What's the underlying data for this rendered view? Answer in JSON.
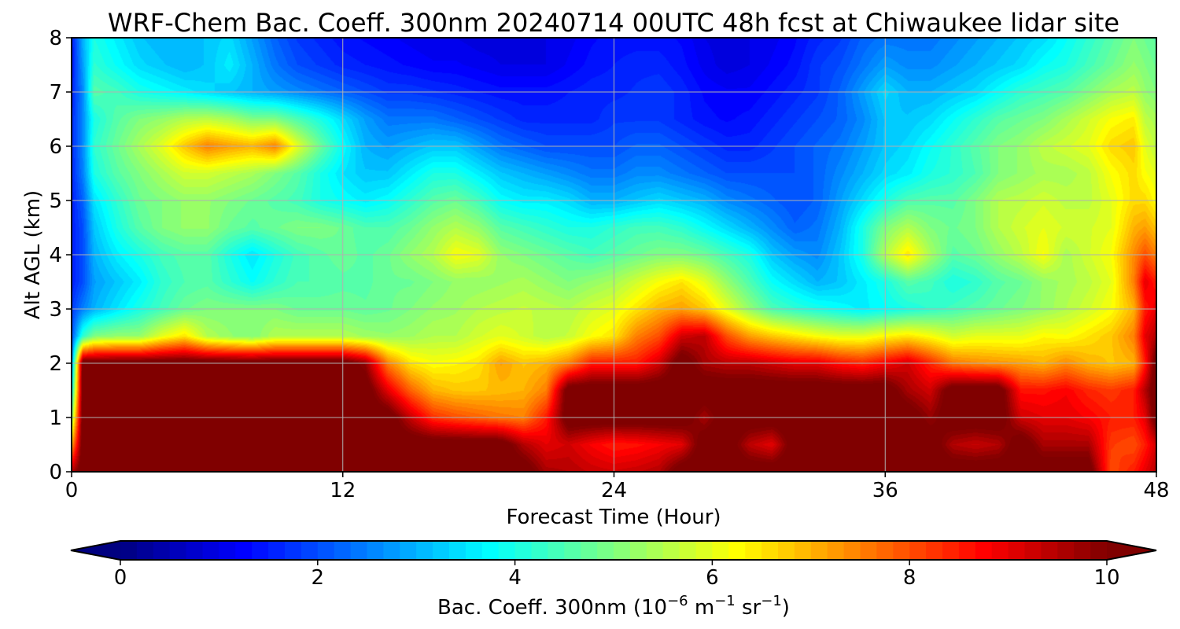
{
  "chart_data": {
    "type": "heatmap",
    "title": "WRF-Chem Bac. Coeff. 300nm  20240714 00UTC 48h fcst at Chiwaukee lidar site",
    "xlabel": "Forecast Time (Hour)",
    "ylabel": "Alt AGL (km)",
    "xlim": [
      0,
      48
    ],
    "ylim": [
      0,
      8
    ],
    "x_ticks": [
      0,
      12,
      24,
      36,
      48
    ],
    "y_ticks": [
      0,
      1,
      2,
      3,
      4,
      5,
      6,
      7,
      8
    ],
    "grid": true,
    "colormap": "jet",
    "colorbar": {
      "label_prefix": "Bac. Coeff. 300nm  (10",
      "label_exp1": "−6",
      "label_mid": " m",
      "label_exp2": "−1",
      "label_mid2": " sr",
      "label_exp3": "−1",
      "label_suffix": ")",
      "range": [
        0,
        10
      ],
      "ticks": [
        0,
        2,
        4,
        6,
        8,
        10
      ],
      "extend": "both",
      "under_color": "#000080",
      "over_color": "#800000"
    },
    "x_hours": [
      0,
      0.5,
      1,
      2,
      3,
      4,
      5,
      6,
      7,
      8,
      9,
      10,
      11,
      12,
      13,
      14,
      15,
      16,
      17,
      18,
      19,
      20,
      21,
      22,
      23,
      24,
      25,
      26,
      27,
      28,
      29,
      30,
      31,
      32,
      33,
      34,
      35,
      36,
      37,
      38,
      39,
      40,
      41,
      42,
      43,
      44,
      45,
      46,
      47,
      47.5,
      48
    ],
    "y_km": [
      0,
      0.5,
      1,
      1.5,
      2,
      2.5,
      3,
      3.5,
      4,
      4.5,
      5,
      5.5,
      6,
      6.5,
      7,
      7.5,
      8
    ],
    "values": [
      [
        9.5,
        10.5,
        10.5,
        10.5,
        10.5,
        10.5,
        10.5,
        10.5,
        10.5,
        10.5,
        10.5,
        10.5,
        10.5,
        10.5,
        10.5,
        10.5,
        10.5,
        10.5,
        10.5,
        10.5,
        10.5,
        10.5,
        9.6,
        9.5,
        9.3,
        9.2,
        9.3,
        9.5,
        10.5,
        10.5,
        10.5,
        10.5,
        10.5,
        10.5,
        10.5,
        10.5,
        10.5,
        10.5,
        10.5,
        10.5,
        10.5,
        10.5,
        10.5,
        10.5,
        10.5,
        10.5,
        10.5,
        8.0,
        8.5,
        9.0,
        9.5
      ],
      [
        7.0,
        10.5,
        10.5,
        10.5,
        10.5,
        10.5,
        10.5,
        10.5,
        10.5,
        10.5,
        10.5,
        10.5,
        10.5,
        10.5,
        10.5,
        10.5,
        10.5,
        10.5,
        10.5,
        10.5,
        10.5,
        9.5,
        9.0,
        9.2,
        8.8,
        8.5,
        8.6,
        8.8,
        9.0,
        10.5,
        10.5,
        9.4,
        9.0,
        10.5,
        10.5,
        10.5,
        10.5,
        10.5,
        10.5,
        10.5,
        9.5,
        9.3,
        9.5,
        10.5,
        9.6,
        9.6,
        9.6,
        8.2,
        8.0,
        8.5,
        9.2
      ],
      [
        5.0,
        10.5,
        10.5,
        10.5,
        10.5,
        10.5,
        10.5,
        10.5,
        10.5,
        10.5,
        10.5,
        10.5,
        10.5,
        10.5,
        10.5,
        10.5,
        9.3,
        8.3,
        8.0,
        7.8,
        7.6,
        7.5,
        8.5,
        10.5,
        10.5,
        10.5,
        10.5,
        10.5,
        10.5,
        9.6,
        10.5,
        10.5,
        10.5,
        10.5,
        10.5,
        10.5,
        10.5,
        10.5,
        10.5,
        9.8,
        10.5,
        10.5,
        10.5,
        9.2,
        9.0,
        9.0,
        8.8,
        8.5,
        8.5,
        9.0,
        10.5
      ],
      [
        3.5,
        10.5,
        10.5,
        10.5,
        10.5,
        10.5,
        10.5,
        10.5,
        10.5,
        10.5,
        10.5,
        10.5,
        10.5,
        10.5,
        10.5,
        9.0,
        7.8,
        7.0,
        6.8,
        6.8,
        6.9,
        7.0,
        7.5,
        10.5,
        10.5,
        10.5,
        10.5,
        10.5,
        10.5,
        10.5,
        10.5,
        10.5,
        10.5,
        10.5,
        10.5,
        10.5,
        10.5,
        10.5,
        9.6,
        9.2,
        10.5,
        10.5,
        10.5,
        8.6,
        8.6,
        8.8,
        8.4,
        8.2,
        8.5,
        9.5,
        10.5
      ],
      [
        2.5,
        10.5,
        10.5,
        10.5,
        10.5,
        10.5,
        10.5,
        10.5,
        10.5,
        10.5,
        10.5,
        10.5,
        10.5,
        10.5,
        9.8,
        7.5,
        6.5,
        6.2,
        6.3,
        6.5,
        7.2,
        6.8,
        7.0,
        7.5,
        8.5,
        8.5,
        8.5,
        9.2,
        10.5,
        9.6,
        9.4,
        9.4,
        9.2,
        9.0,
        9.0,
        8.6,
        8.4,
        8.8,
        9.2,
        8.4,
        7.6,
        7.4,
        7.3,
        7.2,
        7.0,
        7.4,
        7.0,
        6.8,
        7.0,
        8.5,
        10.5
      ],
      [
        2.0,
        4.2,
        5.0,
        5.2,
        5.2,
        6.0,
        6.5,
        5.5,
        5.2,
        5.0,
        5.5,
        5.5,
        5.5,
        5.5,
        5.3,
        5.2,
        5.3,
        5.5,
        5.5,
        5.8,
        6.0,
        5.8,
        5.5,
        5.7,
        6.2,
        6.5,
        7.5,
        8.0,
        9.2,
        9.4,
        8.0,
        7.2,
        6.8,
        6.5,
        6.2,
        6.0,
        6.0,
        6.3,
        6.5,
        6.2,
        5.8,
        6.0,
        6.0,
        6.0,
        6.3,
        6.2,
        6.5,
        6.8,
        7.5,
        9.0,
        9.5
      ],
      [
        1.8,
        2.5,
        3.0,
        3.5,
        4.0,
        4.4,
        4.8,
        5.0,
        5.0,
        5.0,
        5.0,
        4.8,
        4.8,
        4.8,
        4.7,
        4.8,
        5.0,
        5.2,
        5.3,
        5.5,
        5.6,
        5.7,
        5.6,
        5.5,
        5.8,
        6.0,
        6.5,
        7.0,
        7.2,
        6.8,
        6.0,
        5.2,
        4.5,
        4.2,
        4.0,
        3.8,
        3.6,
        3.8,
        4.0,
        4.2,
        4.4,
        4.6,
        4.8,
        5.0,
        5.2,
        5.5,
        5.8,
        6.2,
        7.0,
        8.5,
        9.0
      ],
      [
        1.5,
        2.0,
        2.8,
        3.2,
        3.6,
        4.2,
        4.5,
        4.6,
        4.2,
        3.8,
        4.2,
        4.5,
        4.5,
        4.6,
        4.6,
        4.8,
        4.8,
        5.0,
        5.2,
        5.2,
        5.3,
        5.4,
        5.2,
        5.0,
        5.2,
        5.4,
        5.8,
        6.2,
        6.5,
        6.0,
        5.2,
        4.5,
        3.8,
        3.4,
        3.0,
        3.2,
        3.6,
        4.0,
        4.6,
        4.4,
        4.0,
        4.2,
        4.6,
        4.8,
        5.2,
        5.4,
        5.6,
        6.0,
        7.5,
        9.0,
        8.5
      ],
      [
        1.5,
        2.0,
        3.0,
        3.6,
        4.0,
        4.4,
        4.6,
        4.6,
        4.0,
        3.5,
        4.0,
        4.4,
        4.6,
        4.8,
        4.6,
        4.8,
        5.2,
        5.5,
        6.2,
        6.0,
        5.2,
        5.0,
        4.8,
        4.6,
        4.4,
        4.6,
        4.8,
        5.0,
        5.0,
        4.8,
        4.4,
        4.0,
        3.2,
        2.8,
        2.6,
        3.2,
        4.0,
        5.5,
        6.5,
        5.4,
        4.6,
        4.8,
        5.2,
        5.6,
        6.2,
        5.4,
        5.8,
        6.2,
        7.4,
        8.0,
        7.5
      ],
      [
        1.5,
        2.0,
        3.2,
        4.0,
        4.6,
        5.0,
        5.2,
        5.2,
        4.8,
        4.6,
        4.8,
        5.0,
        5.0,
        4.8,
        4.5,
        4.5,
        4.8,
        5.2,
        5.5,
        5.2,
        4.6,
        4.4,
        4.2,
        4.0,
        4.0,
        4.2,
        4.4,
        4.4,
        4.2,
        3.8,
        3.4,
        3.0,
        2.6,
        2.2,
        2.4,
        3.0,
        4.0,
        5.0,
        5.5,
        5.0,
        4.8,
        5.0,
        5.5,
        5.8,
        6.0,
        5.8,
        5.8,
        6.0,
        7.0,
        7.2,
        6.8
      ],
      [
        1.5,
        2.2,
        3.5,
        4.2,
        4.8,
        5.0,
        5.2,
        5.2,
        5.0,
        4.8,
        4.6,
        4.4,
        4.0,
        3.8,
        3.6,
        3.8,
        4.2,
        4.6,
        4.8,
        4.4,
        3.8,
        3.6,
        3.6,
        3.4,
        3.0,
        3.0,
        3.2,
        3.4,
        3.2,
        3.0,
        2.6,
        2.4,
        2.2,
        2.0,
        2.2,
        2.8,
        3.4,
        4.0,
        4.5,
        4.6,
        4.6,
        5.0,
        5.5,
        5.6,
        5.8,
        5.6,
        5.6,
        6.0,
        6.6,
        6.6,
        6.2
      ],
      [
        1.6,
        2.5,
        4.0,
        4.6,
        5.0,
        5.4,
        5.8,
        5.8,
        5.6,
        5.4,
        5.0,
        4.6,
        4.0,
        3.5,
        3.2,
        3.2,
        3.6,
        4.0,
        4.0,
        3.6,
        3.2,
        3.0,
        2.8,
        2.6,
        2.4,
        2.4,
        2.6,
        2.6,
        2.4,
        2.2,
        2.0,
        2.0,
        2.0,
        2.0,
        2.2,
        2.6,
        3.0,
        3.4,
        3.6,
        4.0,
        4.2,
        4.5,
        5.0,
        5.2,
        5.4,
        5.4,
        5.6,
        6.2,
        6.6,
        6.2,
        6.0
      ],
      [
        1.6,
        2.6,
        4.2,
        4.8,
        5.4,
        6.0,
        6.8,
        7.5,
        7.2,
        7.0,
        7.5,
        6.0,
        4.8,
        3.8,
        3.0,
        2.8,
        3.0,
        3.2,
        3.2,
        2.8,
        2.4,
        2.2,
        2.0,
        2.0,
        2.0,
        2.0,
        2.2,
        2.2,
        2.0,
        1.8,
        1.6,
        1.6,
        1.8,
        2.0,
        2.2,
        2.4,
        2.8,
        3.2,
        3.4,
        3.8,
        4.2,
        4.6,
        5.0,
        5.2,
        5.6,
        5.8,
        6.0,
        6.6,
        6.8,
        6.0,
        5.6
      ],
      [
        1.6,
        2.6,
        4.0,
        4.6,
        5.0,
        5.2,
        5.5,
        5.6,
        5.4,
        5.0,
        5.0,
        4.5,
        4.0,
        3.4,
        2.8,
        2.4,
        2.4,
        2.4,
        2.2,
        2.0,
        1.8,
        1.6,
        1.6,
        1.6,
        1.6,
        1.8,
        1.8,
        1.8,
        1.6,
        1.4,
        1.3,
        1.4,
        1.6,
        1.8,
        2.0,
        2.2,
        2.6,
        3.2,
        3.2,
        3.4,
        3.8,
        4.2,
        4.6,
        4.8,
        5.0,
        5.4,
        5.8,
        6.2,
        6.4,
        5.6,
        5.4
      ],
      [
        1.5,
        2.6,
        4.6,
        4.4,
        4.0,
        3.8,
        3.6,
        3.4,
        3.2,
        3.0,
        2.8,
        2.6,
        2.4,
        2.2,
        2.0,
        1.8,
        1.8,
        1.7,
        1.6,
        1.5,
        1.4,
        1.4,
        1.4,
        1.5,
        1.6,
        1.6,
        1.7,
        1.8,
        1.6,
        1.3,
        1.2,
        1.2,
        1.4,
        1.6,
        1.8,
        2.2,
        2.8,
        3.4,
        3.0,
        3.0,
        3.2,
        3.4,
        3.8,
        4.2,
        4.4,
        4.6,
        5.0,
        5.4,
        5.6,
        5.2,
        5.0
      ],
      [
        1.4,
        2.8,
        4.2,
        3.8,
        3.4,
        3.2,
        3.0,
        3.2,
        3.6,
        3.0,
        2.4,
        2.0,
        1.8,
        1.6,
        1.5,
        1.4,
        1.3,
        1.2,
        1.2,
        1.1,
        1.0,
        1.0,
        1.0,
        1.2,
        1.4,
        1.5,
        1.6,
        1.6,
        1.4,
        1.1,
        0.9,
        1.0,
        1.2,
        1.4,
        1.8,
        2.0,
        2.4,
        2.8,
        2.6,
        2.6,
        2.8,
        3.0,
        3.2,
        3.4,
        3.8,
        4.0,
        4.4,
        4.8,
        5.2,
        5.0,
        4.8
      ],
      [
        1.4,
        3.0,
        4.0,
        3.6,
        3.2,
        3.0,
        3.0,
        3.2,
        3.4,
        2.8,
        2.2,
        1.8,
        1.6,
        1.4,
        1.3,
        1.2,
        1.1,
        1.0,
        1.0,
        0.9,
        0.9,
        0.9,
        1.0,
        1.1,
        1.3,
        1.4,
        1.4,
        1.4,
        1.3,
        1.0,
        0.9,
        1.0,
        1.1,
        1.3,
        1.6,
        1.8,
        2.2,
        2.4,
        2.4,
        2.4,
        2.6,
        2.8,
        3.0,
        3.2,
        3.4,
        3.8,
        4.2,
        4.6,
        5.0,
        4.8,
        4.6
      ]
    ]
  }
}
